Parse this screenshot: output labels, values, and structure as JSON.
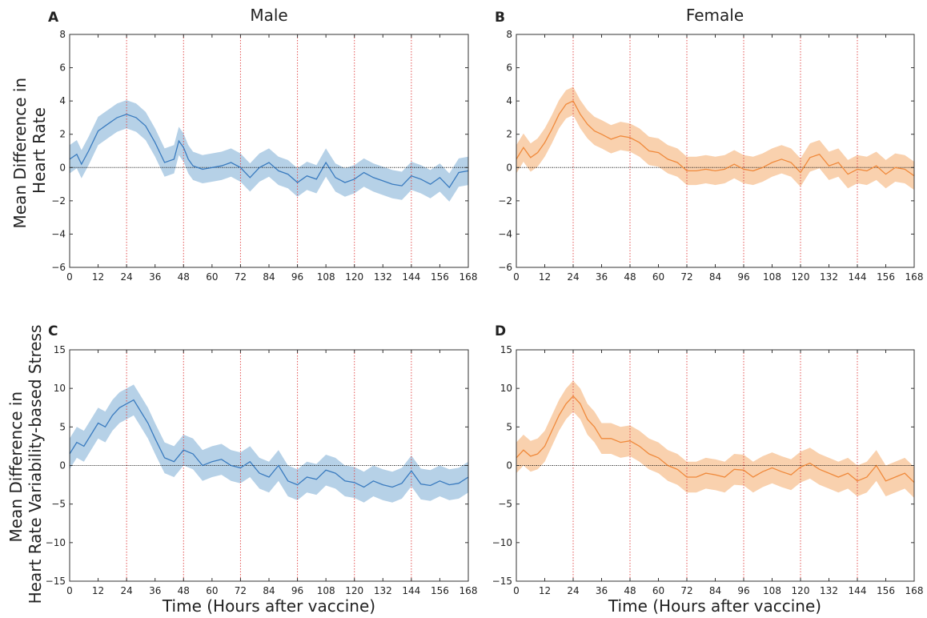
{
  "figure": {
    "col_titles": [
      "Male",
      "Female"
    ],
    "ylabel_top_lines": [
      "Mean Difference in",
      "Heart Rate"
    ],
    "ylabel_bottom_lines": [
      "Mean Difference in",
      "Heart Rate Variability-based Stress"
    ],
    "xlabel": "Time (Hours after vaccine)"
  },
  "colors": {
    "male_line": "#3a7bbf",
    "male_band": "#a9c9e3",
    "female_line": "#f08a3c",
    "female_band": "#f8c9a0",
    "marker_line": "#e04040",
    "zero_line": "#000000"
  },
  "chart_data": [
    {
      "type": "line",
      "panel": "A",
      "title": "Male",
      "xlabel": "",
      "ylabel": "Mean Difference in Heart Rate",
      "xlim": [
        0,
        168
      ],
      "ylim": [
        -6,
        8
      ],
      "xticks": [
        0,
        12,
        24,
        36,
        48,
        60,
        72,
        84,
        96,
        108,
        120,
        132,
        144,
        156,
        168
      ],
      "yticks": [
        -6,
        -4,
        -2,
        0,
        2,
        4,
        6,
        8
      ],
      "vlines": [
        24,
        48,
        72,
        96,
        120,
        144
      ],
      "hline": 0,
      "band_halfwidth": 0.85,
      "series": [
        {
          "x": [
            0,
            3,
            5,
            8,
            12,
            16,
            20,
            24,
            28,
            32,
            36,
            40,
            44,
            46,
            48,
            50,
            52,
            56,
            60,
            64,
            68,
            72,
            76,
            80,
            84,
            88,
            92,
            96,
            100,
            104,
            108,
            112,
            116,
            120,
            124,
            128,
            132,
            136,
            140,
            144,
            148,
            152,
            156,
            160,
            164,
            168
          ],
          "y": [
            0.5,
            0.8,
            0.2,
            1.0,
            2.2,
            2.6,
            3.0,
            3.2,
            3.0,
            2.5,
            1.5,
            0.3,
            0.5,
            1.6,
            1.2,
            0.5,
            0.1,
            -0.1,
            0.0,
            0.1,
            0.3,
            0.0,
            -0.6,
            0.0,
            0.3,
            -0.2,
            -0.4,
            -0.9,
            -0.5,
            -0.7,
            0.3,
            -0.6,
            -0.9,
            -0.7,
            -0.3,
            -0.6,
            -0.8,
            -1.0,
            -1.1,
            -0.5,
            -0.7,
            -1.0,
            -0.6,
            -1.2,
            -0.3,
            -0.2
          ]
        }
      ]
    },
    {
      "type": "line",
      "panel": "B",
      "title": "Female",
      "xlabel": "",
      "ylabel": "",
      "xlim": [
        0,
        168
      ],
      "ylim": [
        -6,
        8
      ],
      "xticks": [
        0,
        12,
        24,
        36,
        48,
        60,
        72,
        84,
        96,
        108,
        120,
        132,
        144,
        156,
        168
      ],
      "yticks": [
        -6,
        -4,
        -2,
        0,
        2,
        4,
        6,
        8
      ],
      "vlines": [
        24,
        48,
        72,
        96,
        120,
        144
      ],
      "hline": 0,
      "band_halfwidth": 0.85,
      "series": [
        {
          "x": [
            0,
            3,
            6,
            9,
            12,
            15,
            18,
            21,
            24,
            27,
            30,
            33,
            36,
            40,
            44,
            48,
            52,
            56,
            60,
            64,
            68,
            72,
            76,
            80,
            84,
            88,
            92,
            96,
            100,
            104,
            108,
            112,
            116,
            120,
            124,
            128,
            132,
            136,
            140,
            144,
            148,
            152,
            156,
            160,
            164,
            168
          ],
          "y": [
            0.5,
            1.2,
            0.6,
            0.9,
            1.5,
            2.3,
            3.2,
            3.8,
            4.0,
            3.2,
            2.6,
            2.2,
            2.0,
            1.7,
            1.9,
            1.8,
            1.5,
            1.0,
            0.9,
            0.5,
            0.3,
            -0.2,
            -0.2,
            -0.1,
            -0.2,
            -0.1,
            0.2,
            -0.1,
            -0.2,
            0.0,
            0.3,
            0.5,
            0.3,
            -0.3,
            0.6,
            0.8,
            0.1,
            0.3,
            -0.4,
            -0.1,
            -0.2,
            0.1,
            -0.4,
            0.0,
            -0.1,
            -0.5
          ]
        }
      ]
    },
    {
      "type": "line",
      "panel": "C",
      "title": "",
      "xlabel": "Time (Hours after vaccine)",
      "ylabel": "Mean Difference in Heart Rate Variability-based Stress",
      "xlim": [
        0,
        168
      ],
      "ylim": [
        -15,
        15
      ],
      "xticks": [
        0,
        12,
        24,
        36,
        48,
        60,
        72,
        84,
        96,
        108,
        120,
        132,
        144,
        156,
        168
      ],
      "yticks": [
        -15,
        -10,
        -5,
        0,
        5,
        10,
        15
      ],
      "vlines": [
        24,
        48,
        72,
        96,
        120,
        144
      ],
      "hline": 0,
      "band_halfwidth": 2.0,
      "series": [
        {
          "x": [
            0,
            3,
            6,
            9,
            12,
            15,
            18,
            21,
            24,
            27,
            30,
            33,
            36,
            40,
            44,
            48,
            52,
            56,
            60,
            64,
            68,
            72,
            76,
            80,
            84,
            88,
            92,
            96,
            100,
            104,
            108,
            112,
            116,
            120,
            124,
            128,
            132,
            136,
            140,
            144,
            148,
            152,
            156,
            160,
            164,
            168
          ],
          "y": [
            1.5,
            3.0,
            2.5,
            4.0,
            5.5,
            5.0,
            6.5,
            7.5,
            8.0,
            8.5,
            7.0,
            5.5,
            3.5,
            1.0,
            0.5,
            2.0,
            1.5,
            0.0,
            0.5,
            0.8,
            0.0,
            -0.3,
            0.5,
            -1.0,
            -1.5,
            0.0,
            -2.0,
            -2.5,
            -1.5,
            -1.8,
            -0.6,
            -1.0,
            -2.0,
            -2.2,
            -2.8,
            -2.0,
            -2.5,
            -2.8,
            -2.3,
            -0.7,
            -2.4,
            -2.6,
            -2.0,
            -2.5,
            -2.3,
            -1.5
          ]
        }
      ]
    },
    {
      "type": "line",
      "panel": "D",
      "title": "",
      "xlabel": "Time (Hours after vaccine)",
      "ylabel": "",
      "xlim": [
        0,
        168
      ],
      "ylim": [
        -15,
        15
      ],
      "xticks": [
        0,
        12,
        24,
        36,
        48,
        60,
        72,
        84,
        96,
        108,
        120,
        132,
        144,
        156,
        168
      ],
      "yticks": [
        -15,
        -10,
        -5,
        0,
        5,
        10,
        15
      ],
      "vlines": [
        24,
        48,
        72,
        96,
        120,
        144
      ],
      "hline": 0,
      "band_halfwidth": 2.0,
      "series": [
        {
          "x": [
            0,
            3,
            6,
            9,
            12,
            15,
            18,
            21,
            24,
            27,
            30,
            33,
            36,
            40,
            44,
            48,
            52,
            56,
            60,
            64,
            68,
            72,
            76,
            80,
            84,
            88,
            92,
            96,
            100,
            104,
            108,
            112,
            116,
            120,
            124,
            128,
            132,
            136,
            140,
            144,
            148,
            152,
            156,
            160,
            164,
            168
          ],
          "y": [
            1.0,
            2.0,
            1.2,
            1.5,
            2.5,
            4.5,
            6.5,
            8.0,
            9.0,
            8.0,
            6.0,
            5.0,
            3.5,
            3.5,
            3.0,
            3.2,
            2.5,
            1.5,
            1.0,
            0.0,
            -0.5,
            -1.5,
            -1.5,
            -1.0,
            -1.2,
            -1.5,
            -0.5,
            -0.6,
            -1.5,
            -0.8,
            -0.3,
            -0.8,
            -1.2,
            -0.2,
            0.3,
            -0.5,
            -1.0,
            -1.5,
            -1.0,
            -2.0,
            -1.5,
            0.0,
            -2.0,
            -1.5,
            -1.0,
            -2.2
          ]
        }
      ]
    }
  ]
}
